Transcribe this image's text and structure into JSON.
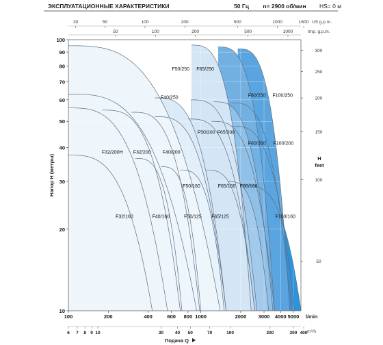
{
  "header": {
    "title": "ЭКСПЛУАТАЦИОННЫЕ ХАРАКТЕРИСТИКИ",
    "frequency": "50 Гц",
    "speed": "n= 2900 об/мин",
    "hs": "HS= 0 м"
  },
  "chart_data": {
    "type": "area",
    "description_free": true,
    "x_scale": "log",
    "y_scale": "log",
    "xlim": [
      100,
      5700
    ],
    "ylim": [
      10,
      100
    ],
    "xlabel": "Подача Q",
    "ylabel": "Напор Н (метры)",
    "x_unit": "l/min",
    "y_right_label": "H",
    "y_right_unit": "feet",
    "left_ticks": [
      10,
      20,
      30,
      40,
      50,
      60,
      70,
      80,
      90,
      100
    ],
    "right_ticks": [
      {
        "label": "50",
        "value": 15.24
      },
      {
        "label": "100",
        "value": 30.48
      },
      {
        "label": "150",
        "value": 45.72
      },
      {
        "label": "200",
        "value": 60.96
      },
      {
        "label": "250",
        "value": 76.2
      },
      {
        "label": "300",
        "value": 91.44
      }
    ],
    "x_ticks": [
      100,
      200,
      400,
      600,
      800,
      1000,
      2000,
      3000,
      4000,
      5000
    ],
    "x_ticks_m3h": [
      {
        "label": "6",
        "value": 100
      },
      {
        "label": "7",
        "value": 116.7
      },
      {
        "label": "8",
        "value": 133.3
      },
      {
        "label": "9",
        "value": 150
      },
      {
        "label": "10",
        "value": 166.7
      },
      {
        "label": "30",
        "value": 500
      },
      {
        "label": "40",
        "value": 666.7
      },
      {
        "label": "50",
        "value": 833.3
      },
      {
        "label": "70",
        "value": 1166.7
      },
      {
        "label": "100",
        "value": 1666.7
      },
      {
        "label": "200",
        "value": 3333.3
      },
      {
        "label": "300",
        "value": 5000
      },
      {
        "label": "400",
        "value": 6666.7
      }
    ],
    "x_unit_m3h": "m³/h",
    "top_ticks_us": [
      {
        "label": "30",
        "value": 113.6
      },
      {
        "label": "50",
        "value": 189.3
      },
      {
        "label": "100",
        "value": 378.5
      },
      {
        "label": "200",
        "value": 757.1
      },
      {
        "label": "500",
        "value": 1892.7
      },
      {
        "label": "1000",
        "value": 3785.4
      },
      {
        "label": "1600",
        "value": 6056.7
      }
    ],
    "top_unit_us": "US g.p.m.",
    "top_ticks_imp": [
      {
        "label": "50",
        "value": 227.3
      },
      {
        "label": "100",
        "value": 454.6
      },
      {
        "label": "200",
        "value": 909.2
      },
      {
        "label": "500",
        "value": 2273
      },
      {
        "label": "1000",
        "value": 4546.1
      }
    ],
    "top_unit_imp": "Imp. g.p.m.",
    "curves": [
      {
        "h0": 95.0,
        "qmax": 1400,
        "q0": 100
      },
      {
        "h0": 95.5,
        "qmax": 2400,
        "q0": 850
      },
      {
        "h0": 94.0,
        "qmax": 3600,
        "q0": 1350
      },
      {
        "h0": 92.5,
        "qmax": 4700,
        "q0": 1900
      },
      {
        "h0": 63.0,
        "qmax": 930,
        "q0": 100
      },
      {
        "h0": 61.0,
        "qmax": 1550,
        "q0": 450
      },
      {
        "h0": 60.0,
        "qmax": 2650,
        "q0": 840
      },
      {
        "h0": 59.0,
        "qmax": 3500,
        "q0": 1250
      },
      {
        "h0": 58.5,
        "qmax": 4800,
        "q0": 1700
      },
      {
        "h0": 56.0,
        "qmax": 560,
        "q0": 100
      },
      {
        "h0": 55.0,
        "qmax": 700,
        "q0": 180
      },
      {
        "h0": 54.0,
        "qmax": 980,
        "q0": 300
      },
      {
        "h0": 52.0,
        "qmax": 1550,
        "q0": 450
      },
      {
        "h0": 51.0,
        "qmax": 2550,
        "q0": 800
      },
      {
        "h0": 50.0,
        "qmax": 3600,
        "q0": 1200
      },
      {
        "h0": 48.0,
        "qmax": 5100,
        "q0": 1700
      },
      {
        "h0": 37.5,
        "qmax": 430,
        "q0": 100
      },
      {
        "h0": 36.5,
        "qmax": 720,
        "q0": 320
      },
      {
        "h0": 34.0,
        "qmax": 1000,
        "q0": 500
      },
      {
        "h0": 33.0,
        "qmax": 1500,
        "q0": 700
      },
      {
        "h0": 33.0,
        "qmax": 2550,
        "q0": 1100
      },
      {
        "h0": 30.0,
        "qmax": 3250,
        "q0": 1600
      },
      {
        "h0": 29.0,
        "qmax": 5700,
        "q0": 2100
      }
    ],
    "regions": [
      {
        "label": "F32/160",
        "x": 265,
        "y": 22.0,
        "color": "#eef5fb"
      },
      {
        "label": "F32/200H",
        "x": 215,
        "y": 38.0,
        "color": "#e8f2fa"
      },
      {
        "label": "F32/200",
        "x": 360,
        "y": 38.0,
        "color": "#e2eef8"
      },
      {
        "label": "F40/160",
        "x": 500,
        "y": 22.0,
        "color": "#dbeaf7"
      },
      {
        "label": "F40/200",
        "x": 600,
        "y": 38.0,
        "color": "#d4e6f6"
      },
      {
        "label": "F40/250",
        "x": 580,
        "y": 60.5,
        "color": "#cee2f4"
      },
      {
        "label": "F50/125",
        "x": 870,
        "y": 22.0,
        "color": "#bcd9f0"
      },
      {
        "label": "F50/160",
        "x": 850,
        "y": 28.5,
        "color": "#b4d4ef"
      },
      {
        "label": "F50/200",
        "x": 1100,
        "y": 45.0,
        "color": "#abcfed"
      },
      {
        "label": "F50/250",
        "x": 705,
        "y": 77.0,
        "color": "#a3caeb"
      },
      {
        "label": "F65/125",
        "x": 1400,
        "y": 22.0,
        "color": "#8fc0e8"
      },
      {
        "label": "F65/160",
        "x": 1570,
        "y": 28.5,
        "color": "#86bbe6"
      },
      {
        "label": "F65/200",
        "x": 1550,
        "y": 45.0,
        "color": "#7cb5e4"
      },
      {
        "label": "F65/250",
        "x": 1080,
        "y": 77.0,
        "color": "#73b0e2"
      },
      {
        "label": "F80/160",
        "x": 2300,
        "y": 28.5,
        "color": "#5aa5df"
      },
      {
        "label": "F80/200",
        "x": 2650,
        "y": 41.0,
        "color": "#529fdd"
      },
      {
        "label": "F80/250",
        "x": 2650,
        "y": 61.5,
        "color": "#4a9ada"
      },
      {
        "label": "F100/160",
        "x": 4350,
        "y": 22.0,
        "color": "#2b94dc"
      },
      {
        "label": "F100/200",
        "x": 4200,
        "y": 41.0,
        "color": "#3d92d6"
      },
      {
        "label": "F100/250",
        "x": 4150,
        "y": 61.5,
        "color": "#3a8fd4"
      }
    ],
    "grid": true
  }
}
